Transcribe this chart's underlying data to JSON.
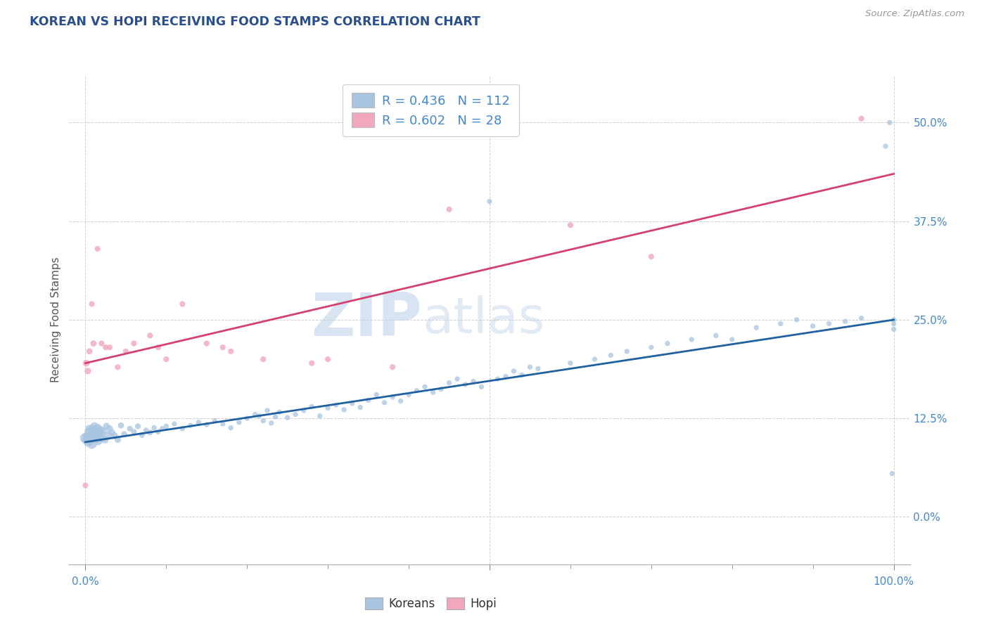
{
  "title": "KOREAN VS HOPI RECEIVING FOOD STAMPS CORRELATION CHART",
  "source": "Source: ZipAtlas.com",
  "ylabel": "Receiving Food Stamps",
  "xlim": [
    -0.02,
    1.02
  ],
  "ylim": [
    -0.06,
    0.56
  ],
  "ytick_positions": [
    0.0,
    0.125,
    0.25,
    0.375,
    0.5
  ],
  "ytick_labels": [
    "0.0%",
    "12.5%",
    "25.0%",
    "37.5%",
    "50.0%"
  ],
  "xtick_positions": [
    0.0,
    0.5,
    1.0
  ],
  "xtick_labels_outer": [
    "0.0%",
    "",
    "100.0%"
  ],
  "minor_xtick_positions": [
    0.1,
    0.2,
    0.3,
    0.4,
    0.6,
    0.7,
    0.8,
    0.9
  ],
  "korean_color": "#a8c4e0",
  "hopi_color": "#f2a8bc",
  "korean_line_color": "#2060a0",
  "hopi_line_color": "#d44070",
  "legend_korean_label": "R = 0.436   N = 112",
  "legend_hopi_label": "R = 0.602   N = 28",
  "legend_label_korean": "Koreans",
  "legend_label_hopi": "Hopi",
  "watermark_zip": "ZIP",
  "watermark_atlas": "atlas",
  "background_color": "#ffffff",
  "grid_color": "#d0d0d0",
  "title_color": "#2b4f8c",
  "tick_color": "#4488cc",
  "korean_x": [
    0.0,
    0.001,
    0.002,
    0.003,
    0.004,
    0.005,
    0.006,
    0.007,
    0.008,
    0.009,
    0.01,
    0.011,
    0.012,
    0.013,
    0.014,
    0.015,
    0.016,
    0.017,
    0.018,
    0.019,
    0.02,
    0.022,
    0.024,
    0.026,
    0.028,
    0.03,
    0.033,
    0.036,
    0.04,
    0.044,
    0.048,
    0.055,
    0.06,
    0.065,
    0.07,
    0.075,
    0.08,
    0.085,
    0.09,
    0.095,
    0.1,
    0.11,
    0.12,
    0.13,
    0.14,
    0.15,
    0.16,
    0.17,
    0.18,
    0.19,
    0.2,
    0.21,
    0.215,
    0.22,
    0.225,
    0.23,
    0.235,
    0.24,
    0.25,
    0.26,
    0.27,
    0.28,
    0.29,
    0.3,
    0.31,
    0.32,
    0.33,
    0.34,
    0.35,
    0.36,
    0.37,
    0.38,
    0.39,
    0.4,
    0.41,
    0.42,
    0.43,
    0.44,
    0.45,
    0.46,
    0.47,
    0.48,
    0.49,
    0.5,
    0.51,
    0.52,
    0.53,
    0.54,
    0.55,
    0.56,
    0.6,
    0.63,
    0.65,
    0.67,
    0.7,
    0.72,
    0.75,
    0.78,
    0.8,
    0.83,
    0.86,
    0.88,
    0.9,
    0.92,
    0.94,
    0.96,
    0.99,
    0.995,
    0.998,
    1.0,
    1.0,
    1.0
  ],
  "korean_y": [
    0.1,
    0.098,
    0.102,
    0.095,
    0.108,
    0.112,
    0.097,
    0.105,
    0.093,
    0.11,
    0.108,
    0.115,
    0.103,
    0.099,
    0.107,
    0.113,
    0.096,
    0.104,
    0.111,
    0.1,
    0.106,
    0.109,
    0.098,
    0.115,
    0.104,
    0.112,
    0.107,
    0.103,
    0.098,
    0.116,
    0.105,
    0.112,
    0.108,
    0.115,
    0.104,
    0.11,
    0.107,
    0.113,
    0.108,
    0.112,
    0.115,
    0.118,
    0.112,
    0.116,
    0.12,
    0.117,
    0.122,
    0.118,
    0.113,
    0.12,
    0.125,
    0.13,
    0.128,
    0.122,
    0.135,
    0.119,
    0.127,
    0.133,
    0.126,
    0.13,
    0.135,
    0.14,
    0.128,
    0.138,
    0.142,
    0.136,
    0.144,
    0.139,
    0.148,
    0.155,
    0.145,
    0.152,
    0.147,
    0.155,
    0.16,
    0.165,
    0.158,
    0.162,
    0.17,
    0.175,
    0.168,
    0.172,
    0.165,
    0.4,
    0.175,
    0.178,
    0.185,
    0.18,
    0.19,
    0.188,
    0.195,
    0.2,
    0.205,
    0.21,
    0.215,
    0.22,
    0.225,
    0.23,
    0.225,
    0.24,
    0.245,
    0.25,
    0.242,
    0.245,
    0.248,
    0.252,
    0.47,
    0.5,
    0.055,
    0.25,
    0.245,
    0.238
  ],
  "korean_sizes": [
    120,
    80,
    70,
    90,
    75,
    65,
    85,
    70,
    110,
    95,
    80,
    70,
    65,
    75,
    60,
    70,
    65,
    75,
    60,
    70,
    60,
    55,
    60,
    50,
    55,
    50,
    45,
    50,
    45,
    40,
    40,
    35,
    35,
    35,
    35,
    30,
    35,
    30,
    30,
    30,
    30,
    28,
    28,
    28,
    28,
    28,
    28,
    28,
    28,
    28,
    28,
    28,
    28,
    28,
    28,
    28,
    28,
    28,
    28,
    28,
    28,
    28,
    28,
    28,
    28,
    28,
    28,
    28,
    28,
    28,
    28,
    28,
    28,
    28,
    28,
    28,
    28,
    28,
    28,
    28,
    28,
    28,
    28,
    28,
    28,
    28,
    28,
    28,
    28,
    28,
    28,
    28,
    28,
    28,
    28,
    28,
    28,
    28,
    28,
    28,
    28,
    28,
    28,
    28,
    28,
    28,
    28,
    28,
    28,
    28,
    28,
    28
  ],
  "hopi_x": [
    0.0,
    0.001,
    0.003,
    0.005,
    0.008,
    0.01,
    0.015,
    0.02,
    0.025,
    0.03,
    0.04,
    0.05,
    0.06,
    0.08,
    0.09,
    0.1,
    0.12,
    0.15,
    0.17,
    0.18,
    0.22,
    0.28,
    0.3,
    0.38,
    0.45,
    0.6,
    0.7,
    0.96
  ],
  "hopi_y": [
    0.04,
    0.195,
    0.185,
    0.21,
    0.27,
    0.22,
    0.34,
    0.22,
    0.215,
    0.215,
    0.19,
    0.21,
    0.22,
    0.23,
    0.215,
    0.2,
    0.27,
    0.22,
    0.215,
    0.21,
    0.2,
    0.195,
    0.2,
    0.19,
    0.39,
    0.37,
    0.33,
    0.505
  ],
  "hopi_sizes": [
    35,
    50,
    45,
    40,
    35,
    40,
    35,
    35,
    35,
    35,
    35,
    35,
    35,
    35,
    35,
    35,
    35,
    35,
    35,
    35,
    35,
    35,
    35,
    35,
    35,
    35,
    35,
    35
  ],
  "korean_line_x0": 0.0,
  "korean_line_y0": 0.095,
  "korean_line_x1": 1.0,
  "korean_line_y1": 0.25,
  "hopi_line_x0": 0.0,
  "hopi_line_y0": 0.195,
  "hopi_line_x1": 1.0,
  "hopi_line_y1": 0.435
}
